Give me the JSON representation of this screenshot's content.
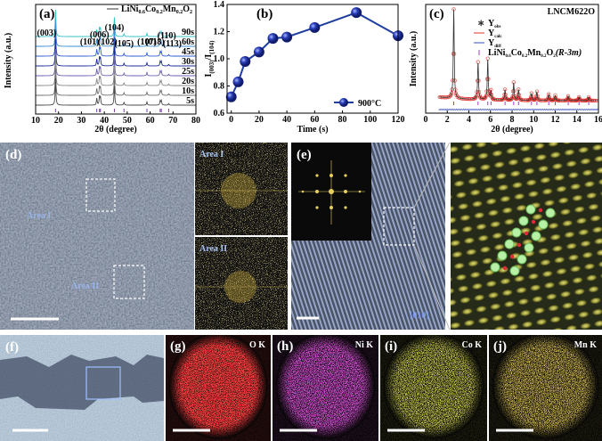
{
  "chart_data": [
    {
      "label": "(a)",
      "type": "xrd-stack",
      "legend": [
        "LiNi",
        "0.6",
        "Co",
        "0.2",
        "Mn",
        "0.2",
        "O",
        "2"
      ],
      "xlabel": "2θ (degree)",
      "ylabel": "Intensity (a.u.)",
      "xlim": [
        10,
        80
      ],
      "xticks": [
        10,
        20,
        30,
        40,
        50,
        60,
        70,
        80
      ],
      "traces": [
        {
          "name": "90s",
          "color": "#34c3c6"
        },
        {
          "name": "60s",
          "color": "#3a8fd4"
        },
        {
          "name": "45s",
          "color": "#2d5fcc"
        },
        {
          "name": "30s",
          "color": "#1c2c96"
        },
        {
          "name": "25s",
          "color": "#6d62b0"
        },
        {
          "name": "20s",
          "color": "#8a8a8a"
        },
        {
          "name": "10s",
          "color": "#707070"
        },
        {
          "name": "5s",
          "color": "#4a4a4a"
        }
      ],
      "peaks": [
        {
          "label": "(003)",
          "x": 18.7,
          "intensity": 1.0
        },
        {
          "label": "(101)",
          "x": 36.7,
          "intensity": 0.25
        },
        {
          "label": "(006)",
          "x": 37.9,
          "intensity": 0.3
        },
        {
          "label": "(102)",
          "x": 38.3,
          "intensity": 0.28
        },
        {
          "label": "(104)",
          "x": 44.4,
          "intensity": 0.72
        },
        {
          "label": "(105)",
          "x": 48.6,
          "intensity": 0.1
        },
        {
          "label": "(107)",
          "x": 58.6,
          "intensity": 0.12
        },
        {
          "label": "(018)",
          "x": 64.4,
          "intensity": 0.16
        },
        {
          "label": "(110)",
          "x": 64.9,
          "intensity": 0.16
        },
        {
          "label": "(113)",
          "x": 68.1,
          "intensity": 0.06
        }
      ]
    },
    {
      "label": "(b)",
      "type": "line",
      "xlabel": "Time (s)",
      "ylabel": [
        "I",
        "(003)",
        "/I",
        "(104)"
      ],
      "x": [
        0,
        5,
        10,
        20,
        30,
        40,
        60,
        90,
        120
      ],
      "series": [
        {
          "name": "900°C",
          "color": "#1f3f9f",
          "values": [
            0.72,
            0.83,
            0.98,
            1.05,
            1.15,
            1.16,
            1.23,
            1.34,
            1.17
          ]
        }
      ],
      "xlim": [
        -3,
        120
      ],
      "xticks": [
        0,
        20,
        40,
        60,
        80,
        100,
        120
      ],
      "ylim": [
        0.6,
        1.4
      ],
      "yticks": [
        0.6,
        0.8,
        {
          "value": 1.0,
          "label": "1.0"
        },
        1.2,
        1.4
      ],
      "legend": "lower right"
    },
    {
      "label": "(c)",
      "type": "rietveld",
      "title": "LNCM622O",
      "xlabel": "2θ (degree)",
      "ylabel": "Intensity (a.u.)",
      "xlim": [
        0,
        16
      ],
      "xticks": [
        0,
        2,
        4,
        6,
        8,
        10,
        12,
        14,
        16
      ],
      "legend": [
        [
          "Y",
          "obs"
        ],
        [
          "Y",
          "calc"
        ],
        [
          "Y",
          "diff"
        ]
      ],
      "phase": [
        "LiNi",
        "0.6",
        "Co",
        "0.2",
        "Mn",
        "0.2",
        "O",
        "2",
        "(R-3m)"
      ],
      "colors": {
        "obs": "#333333",
        "calc": "#e0302a",
        "diff": "#3a4fc0",
        "ticks": "#a040c0"
      },
      "peaks": [
        {
          "x": 2.6,
          "intensity": 1.0
        },
        {
          "x": 4.85,
          "intensity": 0.42
        },
        {
          "x": 5.75,
          "intensity": 0.46
        },
        {
          "x": 6.05,
          "intensity": 0.1
        },
        {
          "x": 7.35,
          "intensity": 0.12
        },
        {
          "x": 8.15,
          "intensity": 0.2
        },
        {
          "x": 8.6,
          "intensity": 0.12
        },
        {
          "x": 9.8,
          "intensity": 0.08
        },
        {
          "x": 10.3,
          "intensity": 0.1
        },
        {
          "x": 11.4,
          "intensity": 0.07
        },
        {
          "x": 12.0,
          "intensity": 0.06
        },
        {
          "x": 13.2,
          "intensity": 0.05
        },
        {
          "x": 14.2,
          "intensity": 0.04
        },
        {
          "x": 15.1,
          "intensity": 0.04
        }
      ]
    }
  ],
  "images": {
    "d": {
      "label": "(d)",
      "areas": [
        "Area I",
        "Area II"
      ],
      "fft": [
        "Area I",
        "Area II"
      ]
    },
    "e": {
      "label": "(e)",
      "zone_axis": "[010]"
    },
    "f": {
      "label": "(f)"
    },
    "maps": [
      {
        "label": "(g)",
        "element": "O K"
      },
      {
        "label": "(h)",
        "element": "Ni K"
      },
      {
        "label": "(i)",
        "element": "Co K"
      },
      {
        "label": "(j)",
        "element": "Mn K"
      }
    ]
  }
}
